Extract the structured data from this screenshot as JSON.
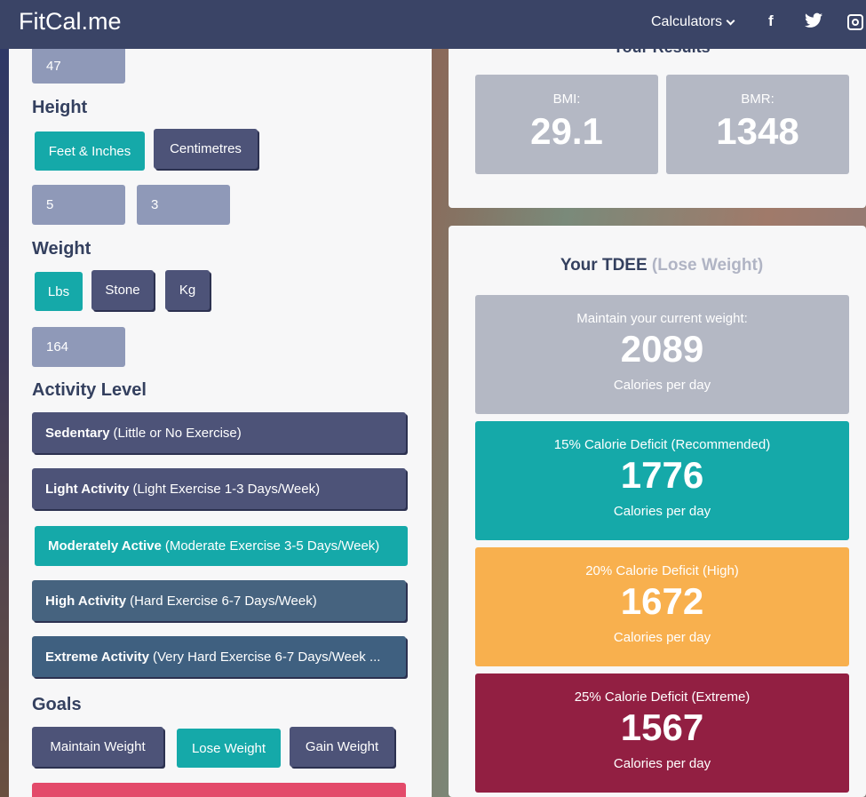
{
  "header": {
    "brand": "FitCal.me",
    "nav_calculators": "Calculators",
    "social": {
      "facebook": "f"
    }
  },
  "form": {
    "age_value": "47",
    "height": {
      "heading": "Height",
      "unit_feet": "Feet & Inches",
      "unit_cm": "Centimetres",
      "feet_value": "5",
      "inches_value": "3"
    },
    "weight": {
      "heading": "Weight",
      "unit_lbs": "Lbs",
      "unit_stone": "Stone",
      "unit_kg": "Kg",
      "value": "164"
    },
    "activity": {
      "heading": "Activity Level",
      "items": [
        {
          "bold": "Sedentary",
          "detail": "(Little or No Exercise)",
          "color": "#4d5378"
        },
        {
          "bold": "Light Activity",
          "detail": "(Light Exercise 1-3 Days/Week)",
          "color": "#4d5378"
        },
        {
          "bold": "Moderately Active",
          "detail": "(Moderate Exercise 3-5 Days/Week)",
          "color": "#15a9a9"
        },
        {
          "bold": "High Activity",
          "detail": "(Hard Exercise 6-7 Days/Week)",
          "color": "#46637f"
        },
        {
          "bold": "Extreme Activity",
          "detail": "(Very Hard Exercise 6-7 Days/Week ...",
          "color": "#3f6080"
        }
      ]
    },
    "goals": {
      "heading": "Goals",
      "maintain": "Maintain Weight",
      "lose": "Lose Weight",
      "gain": "Gain Weight"
    }
  },
  "results": {
    "title": "Your Results",
    "bmi_label": "BMI:",
    "bmi_value": "29.1",
    "bmr_label": "BMR:",
    "bmr_value": "1348"
  },
  "tdee": {
    "title": "Your TDEE",
    "subtitle": "(Lose Weight)",
    "cards": [
      {
        "label": "Maintain your current weight:",
        "value": "2089",
        "unit": "Calories per day",
        "color": "#b4b8c4"
      },
      {
        "label": "15% Calorie Deficit (Recommended)",
        "value": "1776",
        "unit": "Calories per day",
        "color": "#15a9a9"
      },
      {
        "label": "20% Calorie Deficit (High)",
        "value": "1672",
        "unit": "Calories per day",
        "color": "#f8b04e"
      },
      {
        "label": "25% Calorie Deficit (Extreme)",
        "value": "1567",
        "unit": "Calories per day",
        "color": "#921f42"
      }
    ]
  },
  "colors": {
    "header": "#3a4466",
    "accent": "#15a9a9",
    "calculate_button": "#e34a6a"
  }
}
